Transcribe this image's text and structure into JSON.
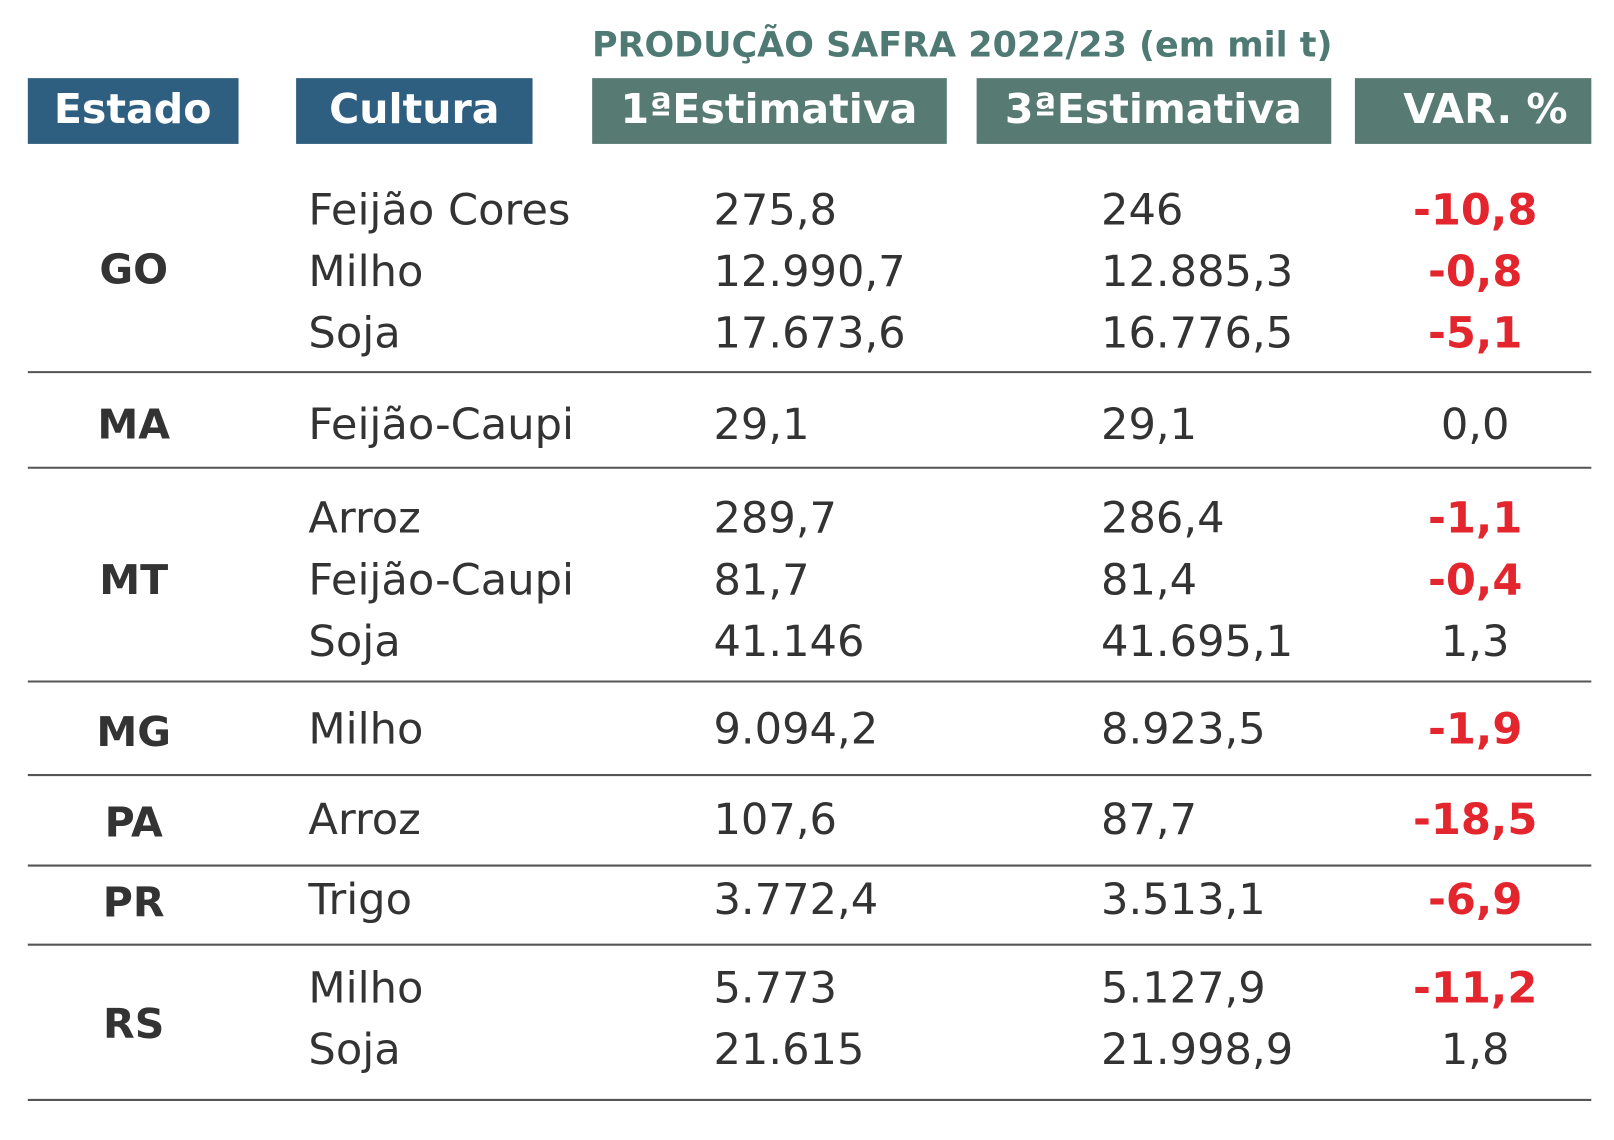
{
  "title": "PRODUÇÃO SAFRA 2022/23 (em mil t)",
  "headers": [
    "Estado",
    "Cultura",
    "1ªEstimativa",
    "3ªEstimativa",
    "VAR. %"
  ],
  "groups": [
    {
      "state": "GO",
      "rows": [
        [
          "Feijão Cores",
          "275,8",
          "246",
          "-10,8"
        ],
        [
          "Milho",
          "12.990,7",
          "12.885,3",
          "-0,8"
        ],
        [
          "Soja",
          "17.673,6",
          "16.776,5",
          "-5,1"
        ]
      ]
    },
    {
      "state": "MA",
      "rows": [
        [
          "Feijão-Caupi",
          "29,1",
          "29,1",
          "0,0"
        ]
      ]
    },
    {
      "state": "MT",
      "rows": [
        [
          "Arroz",
          "289,7",
          "286,4",
          "-1,1"
        ],
        [
          "Feijão-Caupi",
          "81,7",
          "81,4",
          "-0,4"
        ],
        [
          "Soja",
          "41.146",
          "41.695,1",
          "1,3"
        ]
      ]
    },
    {
      "state": "MG",
      "rows": [
        [
          "Milho",
          "9.094,2",
          "8.923,5",
          "-1,9"
        ]
      ]
    },
    {
      "state": "PA",
      "rows": [
        [
          "Arroz",
          "107,6",
          "87,7",
          "-18,5"
        ]
      ]
    },
    {
      "state": "PR",
      "rows": [
        [
          "Trigo",
          "3.772,4",
          "3.513,1",
          "-6,9"
        ]
      ]
    },
    {
      "state": "RS",
      "rows": [
        [
          "Milho",
          "5.773",
          "5.127,9",
          "-11,2"
        ],
        [
          "Soja",
          "21.615",
          "21.998,9",
          "1,8"
        ]
      ]
    }
  ]
}
